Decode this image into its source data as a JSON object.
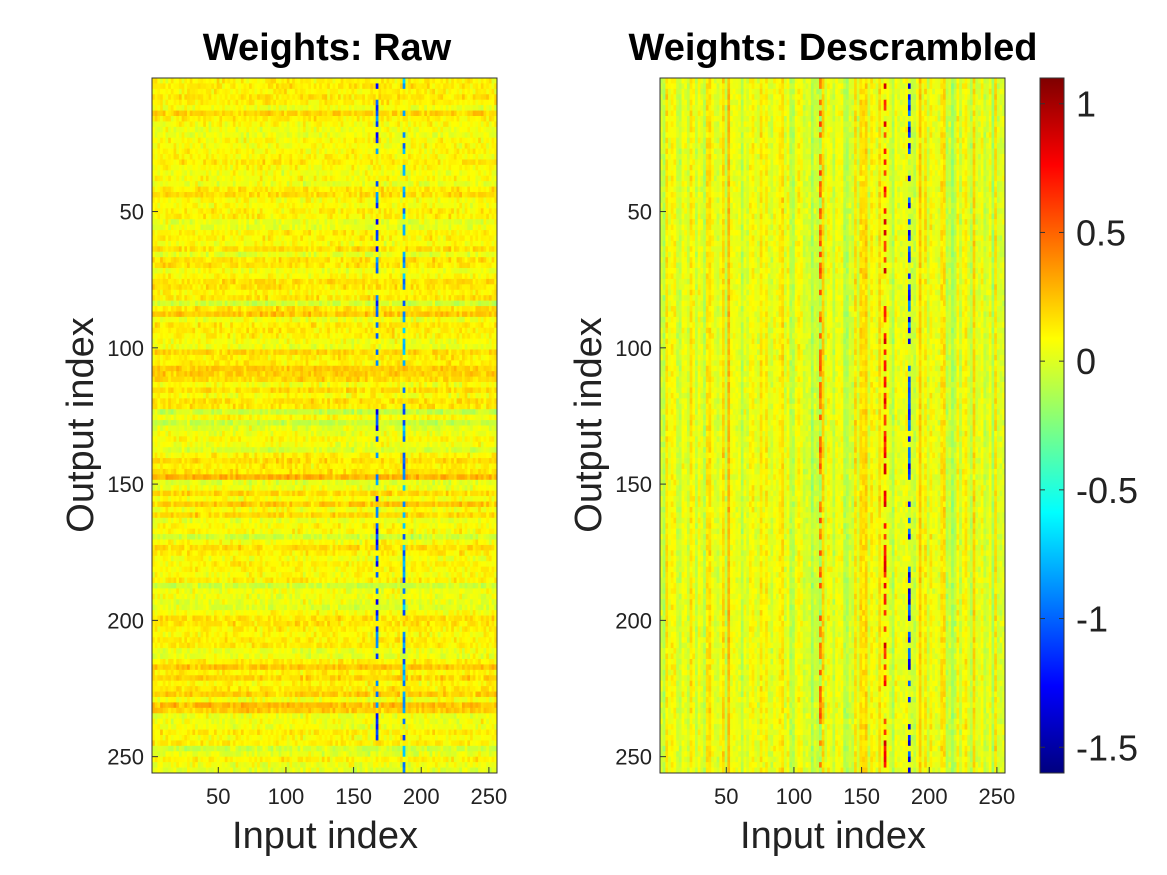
{
  "chart_data": [
    {
      "type": "heatmap",
      "title": "Weights: Raw",
      "xlabel": "Input index",
      "ylabel": "Output index",
      "xlim": [
        1,
        256
      ],
      "ylim": [
        1,
        256
      ],
      "y_reversed": true,
      "xticks": [
        50,
        100,
        150,
        200,
        250
      ],
      "yticks": [
        50,
        100,
        150,
        200,
        250
      ],
      "pattern": "row-structured",
      "dominant_value": 0.1,
      "strong_columns": [
        {
          "x": 168,
          "value": -1.3
        },
        {
          "x": 188,
          "value": -1.1
        }
      ]
    },
    {
      "type": "heatmap",
      "title": "Weights: Descrambled",
      "xlabel": "Input index",
      "ylabel": "Output index",
      "xlim": [
        1,
        256
      ],
      "ylim": [
        1,
        256
      ],
      "y_reversed": true,
      "xticks": [
        50,
        100,
        150,
        200,
        250
      ],
      "yticks": [
        50,
        100,
        150,
        200,
        250
      ],
      "pattern": "column-structured",
      "dominant_value": 0.05,
      "strong_columns": [
        {
          "x": 168,
          "value": 0.9
        },
        {
          "x": 186,
          "value": -1.4
        },
        {
          "x": 120,
          "value": 0.6
        }
      ]
    }
  ],
  "colorbar": {
    "colormap": "jet",
    "limits": [
      -1.6,
      1.1
    ],
    "ticks": [
      1,
      0.5,
      0,
      -0.5,
      -1,
      -1.5
    ],
    "tick_labels": [
      "1",
      "0.5",
      "0",
      "-0.5",
      "-1",
      "-1.5"
    ]
  }
}
